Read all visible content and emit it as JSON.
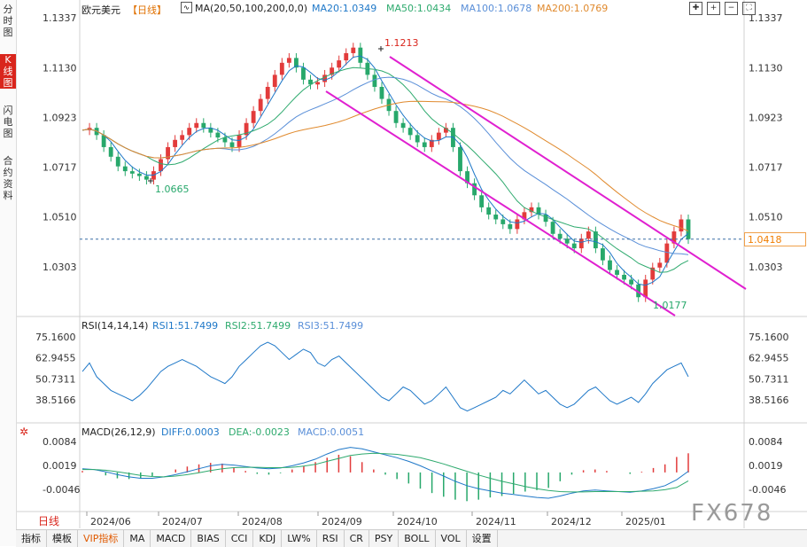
{
  "left_tabs": [
    {
      "label": "分时图",
      "active": false
    },
    {
      "label": "K线图",
      "active": true
    },
    {
      "label": "闪电图",
      "active": false
    },
    {
      "label": "合约资料",
      "active": false
    }
  ],
  "header": {
    "symbol": "欧元美元",
    "period": "【日线】",
    "ma_label": "MA(20,50,100,200,0,0)",
    "ma20": "MA20:1.0349",
    "ma50": "MA50:1.0434",
    "ma100": "MA100:1.0678",
    "ma200": "MA200:1.0769"
  },
  "rsi_header": {
    "label": "RSI(14,14,14)",
    "rsi1": "RSI1:51.7499",
    "rsi2": "RSI2:51.7499",
    "rsi3": "RSI3:51.7499"
  },
  "macd_header": {
    "label": "MACD(26,12,9)",
    "diff": "DIFF:0.0003",
    "dea": "DEA:-0.0023",
    "macd": "MACD:0.0051"
  },
  "price_axis": [
    "1.1337",
    "1.1130",
    "1.0923",
    "1.0717",
    "1.0510",
    "1.0303"
  ],
  "rsi_axis": [
    "75.1600",
    "62.9455",
    "50.7311",
    "38.5166"
  ],
  "macd_axis": [
    "0.0084",
    "0.0019",
    "-0.0046"
  ],
  "x_labels": [
    "2024/06",
    "2024/07",
    "2024/08",
    "2024/09",
    "2024/10",
    "2024/11",
    "2024/12",
    "2025/01"
  ],
  "annotations": {
    "high": "1.1213",
    "low1": "1.0665",
    "low2": "1.0177"
  },
  "current_price": "1.0418",
  "day_label": "日线",
  "bottom_tabs": [
    "指标",
    "模板",
    "VIP指标",
    "MA",
    "MACD",
    "BIAS",
    "CCI",
    "KDJ",
    "LW%",
    "RSI",
    "CR",
    "PSY",
    "BOLL",
    "VOL",
    "设置"
  ],
  "watermark": "FX678",
  "colors": {
    "up": "#e23b3b",
    "down": "#27a86b",
    "ma20": "#1f78c8",
    "ma50": "#2eaa6e",
    "ma100": "#5a8fd8",
    "ma200": "#e08a2e",
    "channel": "#e020d0"
  },
  "chart_data": {
    "type": "candlestick",
    "price_ylim": [
      1.0177,
      1.1337
    ],
    "x_range": [
      "2024/05",
      "2025/01"
    ],
    "key_levels": {
      "high": 1.1213,
      "low_july": 1.0665,
      "low_jan": 1.0177,
      "last": 1.0418
    },
    "price_path": [
      1.087,
      1.088,
      1.085,
      1.08,
      1.076,
      1.072,
      1.07,
      1.069,
      1.068,
      1.0665,
      1.07,
      1.075,
      1.08,
      1.083,
      1.085,
      1.088,
      1.09,
      1.088,
      1.086,
      1.084,
      1.082,
      1.08,
      1.085,
      1.09,
      1.095,
      1.1,
      1.105,
      1.11,
      1.115,
      1.117,
      1.113,
      1.108,
      1.106,
      1.107,
      1.11,
      1.113,
      1.116,
      1.119,
      1.1213,
      1.115,
      1.11,
      1.105,
      1.1,
      1.095,
      1.09,
      1.088,
      1.085,
      1.082,
      1.08,
      1.083,
      1.086,
      1.088,
      1.08,
      1.07,
      1.065,
      1.06,
      1.055,
      1.052,
      1.05,
      1.048,
      1.046,
      1.05,
      1.053,
      1.055,
      1.052,
      1.049,
      1.044,
      1.042,
      1.04,
      1.038,
      1.042,
      1.045,
      1.038,
      1.033,
      1.029,
      1.027,
      1.025,
      1.023,
      1.0177,
      1.025,
      1.03,
      1.032,
      1.04,
      1.045,
      1.05,
      1.0418
    ],
    "rsi_ylim": [
      30,
      80
    ],
    "rsi_path": [
      55,
      60,
      52,
      48,
      44,
      42,
      40,
      38,
      41,
      45,
      50,
      55,
      58,
      60,
      62,
      60,
      58,
      55,
      52,
      50,
      48,
      52,
      58,
      62,
      66,
      70,
      72,
      70,
      66,
      62,
      65,
      68,
      66,
      60,
      58,
      62,
      64,
      60,
      56,
      52,
      48,
      44,
      40,
      38,
      42,
      46,
      44,
      40,
      36,
      38,
      42,
      46,
      40,
      34,
      32,
      34,
      36,
      38,
      40,
      44,
      42,
      46,
      50,
      46,
      42,
      44,
      40,
      36,
      34,
      36,
      40,
      44,
      46,
      42,
      38,
      36,
      38,
      40,
      37,
      42,
      48,
      52,
      56,
      58,
      60,
      52
    ],
    "macd_ylim": [
      -0.008,
      0.01
    ],
    "macd_diff": [
      0.001,
      0.0008,
      0.0002,
      -0.0006,
      -0.0012,
      -0.0016,
      -0.0016,
      -0.0012,
      -0.0006,
      0.0002,
      0.001,
      0.0018,
      0.0022,
      0.002,
      0.0016,
      0.0012,
      0.001,
      0.0012,
      0.0018,
      0.0026,
      0.0036,
      0.005,
      0.0062,
      0.0068,
      0.0064,
      0.0056,
      0.0048,
      0.004,
      0.003,
      0.0018,
      0.0004,
      -0.001,
      -0.0024,
      -0.0036,
      -0.0044,
      -0.005,
      -0.0056,
      -0.006,
      -0.0064,
      -0.0068,
      -0.007,
      -0.0064,
      -0.0056,
      -0.005,
      -0.0048,
      -0.005,
      -0.0052,
      -0.0054,
      -0.005,
      -0.0044,
      -0.0036,
      -0.002,
      0.0003
    ],
    "macd_dea": [
      0.0008,
      0.0008,
      0.0006,
      0.0002,
      -0.0003,
      -0.0008,
      -0.0011,
      -0.0012,
      -0.001,
      -0.0006,
      -0.0001,
      0.0005,
      0.001,
      0.0013,
      0.0014,
      0.0014,
      0.0013,
      0.0013,
      0.0014,
      0.0017,
      0.0022,
      0.003,
      0.0038,
      0.0046,
      0.005,
      0.0052,
      0.0051,
      0.0049,
      0.0045,
      0.004,
      0.0032,
      0.0023,
      0.0013,
      0.0003,
      -0.0007,
      -0.0016,
      -0.0024,
      -0.0031,
      -0.0038,
      -0.0044,
      -0.0049,
      -0.0052,
      -0.0053,
      -0.0053,
      -0.0052,
      -0.0052,
      -0.0052,
      -0.0052,
      -0.0051,
      -0.005,
      -0.0047,
      -0.0041,
      -0.0023
    ]
  }
}
